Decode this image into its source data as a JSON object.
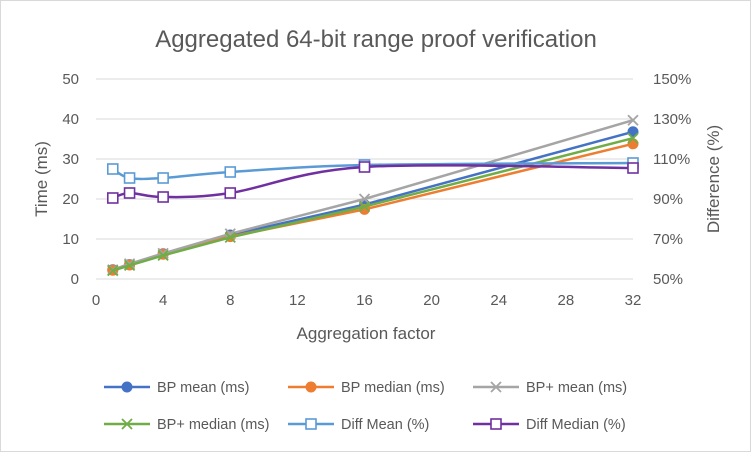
{
  "chart_data": {
    "type": "line",
    "title": "Aggregated 64-bit range proof verification",
    "xlabel": "Aggregation factor",
    "ylabel": "Time (ms)",
    "y2label": "Difference (%)",
    "xlim": [
      0,
      32
    ],
    "ylim": [
      0,
      50
    ],
    "y2lim": [
      50,
      150
    ],
    "x_ticks": [
      "0",
      "4",
      "8",
      "12",
      "16",
      "20",
      "24",
      "28",
      "32"
    ],
    "y_ticks": [
      "0",
      "10",
      "20",
      "30",
      "40",
      "50"
    ],
    "y2_ticks": [
      "50%",
      "70%",
      "90%",
      "110%",
      "130%",
      "150%"
    ],
    "grid": true,
    "legend_position": "bottom",
    "x": [
      1,
      2,
      4,
      8,
      16,
      32
    ],
    "series": [
      {
        "name": "BP mean (ms)",
        "axis": "left",
        "marker": "circle",
        "smooth": false,
        "color": "#4472c4",
        "values": [
          2.3,
          3.6,
          6.3,
          11.0,
          18.6,
          36.8
        ]
      },
      {
        "name": "BP median (ms)",
        "axis": "left",
        "marker": "circle",
        "smooth": false,
        "color": "#ed7d31",
        "values": [
          2.2,
          3.5,
          6.2,
          10.6,
          17.4,
          33.8
        ]
      },
      {
        "name": "BP+ mean (ms)",
        "axis": "left",
        "marker": "x",
        "smooth": false,
        "color": "#a5a5a5",
        "values": [
          2.3,
          3.8,
          6.4,
          11.3,
          20.0,
          39.7
        ]
      },
      {
        "name": "BP+ median (ms)",
        "axis": "left",
        "marker": "x",
        "smooth": false,
        "color": "#70ad47",
        "values": [
          2.1,
          3.4,
          5.9,
          10.4,
          18.1,
          35.2
        ]
      },
      {
        "name": "Diff Mean (%)",
        "axis": "right",
        "marker": "square",
        "smooth": true,
        "color": "#5b9bd5",
        "values": [
          105,
          100.5,
          100.5,
          103.5,
          107,
          108
        ]
      },
      {
        "name": "Diff Median (%)",
        "axis": "right",
        "marker": "square",
        "smooth": true,
        "color": "#7030a0",
        "values": [
          90.5,
          93,
          91,
          93,
          106,
          105.5
        ]
      }
    ]
  }
}
